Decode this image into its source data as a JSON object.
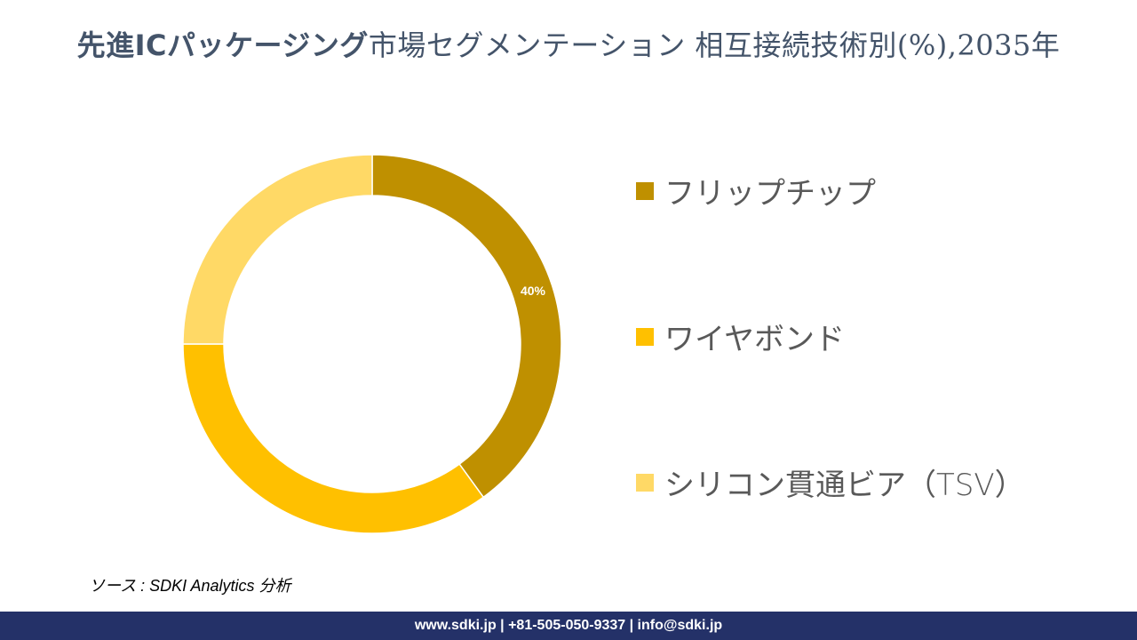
{
  "title": {
    "bold_part": "先進ICパッケージング",
    "rest_part": "市場セグメンテーション 相互接続技術別(%),2035年"
  },
  "chart_data": {
    "type": "pie",
    "subtype": "donut",
    "title": "先進ICパッケージング市場セグメンテーション 相互接続技術別(%),2035年",
    "categories": [
      "フリップチップ",
      "ワイヤボンド",
      "シリコン貫通ビア（TSV）"
    ],
    "values": [
      40,
      35,
      25
    ],
    "colors": [
      "#bf9000",
      "#ffc000",
      "#ffd966"
    ],
    "data_labels": [
      "40%",
      "",
      ""
    ],
    "start_angle_deg": 0,
    "direction": "clockwise",
    "legend_position": "right"
  },
  "data_label": "40%",
  "legend": [
    {
      "label": "フリップチップ",
      "color": "#bf9000"
    },
    {
      "label": "ワイヤボンド",
      "color": "#ffc000"
    },
    {
      "label": "シリコン貫通ビア（TSV）",
      "color": "#ffd966"
    }
  ],
  "source": "ソース : SDKI Analytics  分析",
  "footer": "www.sdki.jp | +81-505-050-9337 | info@sdki.jp"
}
